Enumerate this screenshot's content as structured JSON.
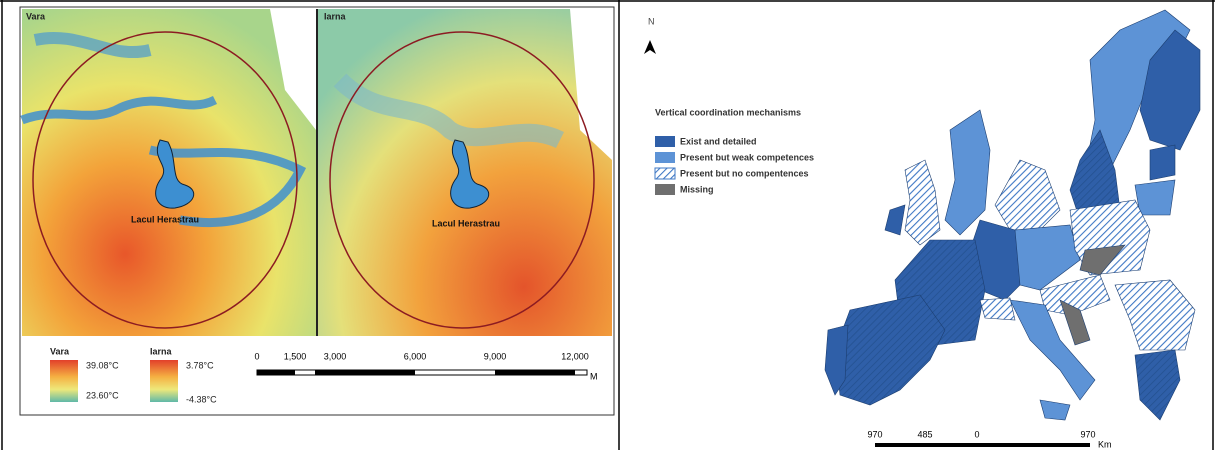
{
  "left_map": {
    "panels": [
      {
        "label": "Vara",
        "place": "Lacul Herastrau"
      },
      {
        "label": "Iarna",
        "place": "Lacul Herastrau"
      }
    ],
    "legend": [
      {
        "title": "Vara",
        "max": "39.08°C",
        "min": "23.60°C"
      },
      {
        "title": "Iarna",
        "max": "3.78°C",
        "min": "-4.38°C"
      }
    ],
    "scale": {
      "labels": [
        "0",
        "1,500",
        "3,000",
        "6,000",
        "9,000",
        "12,000"
      ],
      "unit": "M"
    }
  },
  "right_map": {
    "north": "N",
    "legend_title": "Vertical coordination mechanisms",
    "legend": [
      "Exist and detailed",
      "Present but weak competences",
      "Present but no compentences",
      "Missing"
    ],
    "scale": {
      "labels": [
        "970",
        "485",
        "0",
        "970"
      ],
      "unit": "Km"
    }
  }
}
